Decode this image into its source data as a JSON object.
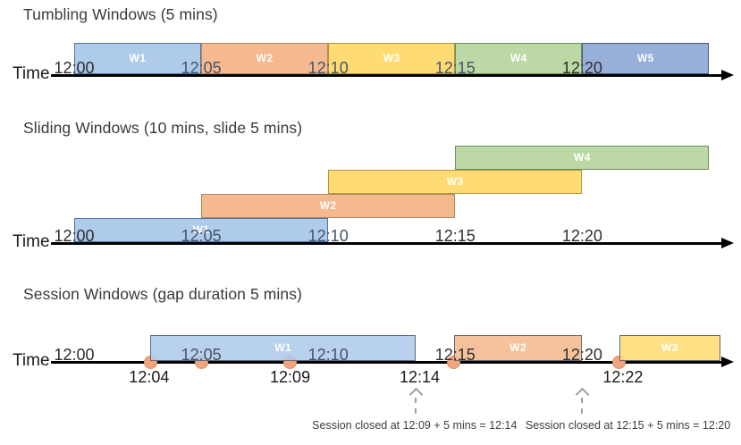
{
  "colors": {
    "blue": {
      "fill": "#AECBEA",
      "border": "#4E75A3"
    },
    "orange": {
      "fill": "#F4B98E",
      "border": "#B08A62"
    },
    "yellow": {
      "fill": "#FFDC73",
      "border": "#B2953F"
    },
    "green": {
      "fill": "#BCD9A5",
      "border": "#6E8F5B"
    },
    "indigo": {
      "fill": "#98AFD9",
      "border": "#44597F"
    },
    "session_border": "#5F6B7A",
    "dot_fill": "#F2A47F",
    "dot_border": "#D98E63",
    "axis": "#000000",
    "tick_muted": "#44546A",
    "tick_dark": "#2E2E2E",
    "annotation": "#3D3D3D"
  },
  "sections": [
    {
      "id": "tumbling",
      "title": "Tumbling Windows (5 mins)",
      "time_label": "Time",
      "ticks": [
        {
          "label": "12:00",
          "min": 0,
          "tone": "dark"
        },
        {
          "label": "12:05",
          "min": 5,
          "tone": "muted"
        },
        {
          "label": "12:10",
          "min": 10,
          "tone": "muted"
        },
        {
          "label": "12:15",
          "min": 15,
          "tone": "muted"
        },
        {
          "label": "12:20",
          "min": 20,
          "tone": "dark"
        }
      ],
      "windows": [
        {
          "label": "W1",
          "start": 0,
          "end": 5,
          "color": "blue",
          "row": 0
        },
        {
          "label": "W2",
          "start": 5,
          "end": 10,
          "color": "orange",
          "row": 0
        },
        {
          "label": "W3",
          "start": 10,
          "end": 15,
          "color": "yellow",
          "row": 0
        },
        {
          "label": "W4",
          "start": 15,
          "end": 20,
          "color": "green",
          "row": 0
        },
        {
          "label": "W5",
          "start": 20,
          "end": 25,
          "color": "indigo",
          "row": 0
        }
      ]
    },
    {
      "id": "sliding",
      "title": "Sliding Windows (10 mins, slide 5 mins)",
      "time_label": "Time",
      "ticks": [
        {
          "label": "12:00",
          "min": 0,
          "tone": "dark"
        },
        {
          "label": "12:05",
          "min": 5,
          "tone": "muted"
        },
        {
          "label": "12:10",
          "min": 10,
          "tone": "muted"
        },
        {
          "label": "12:15",
          "min": 15,
          "tone": "dark"
        },
        {
          "label": "12:20",
          "min": 20,
          "tone": "dark"
        }
      ],
      "windows": [
        {
          "label": "W1",
          "start": 0,
          "end": 10,
          "color": "blue",
          "row": 0
        },
        {
          "label": "W2",
          "start": 5,
          "end": 15,
          "color": "orange",
          "row": 1
        },
        {
          "label": "W3",
          "start": 10,
          "end": 20,
          "color": "yellow",
          "row": 2
        },
        {
          "label": "W4",
          "start": 15,
          "end": 25,
          "color": "green",
          "row": 3
        }
      ]
    },
    {
      "id": "session",
      "title": "Session Windows (gap duration 5 mins)",
      "time_label": "Time",
      "ticks": [
        {
          "label": "12:00",
          "min": 0,
          "tone": "dark"
        },
        {
          "label": "12:05",
          "min": 5,
          "tone": "muted"
        },
        {
          "label": "12:10",
          "min": 10,
          "tone": "muted"
        },
        {
          "label": "12:15",
          "min": 15,
          "tone": "dark"
        },
        {
          "label": "12:20",
          "min": 20,
          "tone": "dark"
        }
      ],
      "windows": [
        {
          "label": "W1",
          "start": 3.0,
          "end": 13.45,
          "color": "blue",
          "row": 0
        },
        {
          "label": "W2",
          "start": 14.95,
          "end": 20.0,
          "color": "orange",
          "row": 0
        },
        {
          "label": "W3",
          "start": 21.45,
          "end": 25.45,
          "color": "yellow",
          "row": 0
        }
      ],
      "events": [
        {
          "min": 3.0
        },
        {
          "min": 5.0
        },
        {
          "min": 8.5
        },
        {
          "min": 14.95
        },
        {
          "min": 21.45
        }
      ],
      "event_labels": [
        {
          "label": "12:04",
          "min": 2.95
        },
        {
          "label": "12:09",
          "min": 8.5
        },
        {
          "label": "12:14",
          "min": 13.6
        },
        {
          "label": "12:22",
          "min": 21.6
        }
      ],
      "close_arrows": [
        {
          "min": 13.45
        },
        {
          "min": 20.0
        }
      ],
      "annotations": [
        {
          "text": "Session closed at 12:09 + 5 mins = 12:14",
          "center_min": 13.4
        },
        {
          "text": "Session closed at 12:15 + 5 mins = 12:20",
          "center_min": 21.8
        }
      ]
    }
  ]
}
